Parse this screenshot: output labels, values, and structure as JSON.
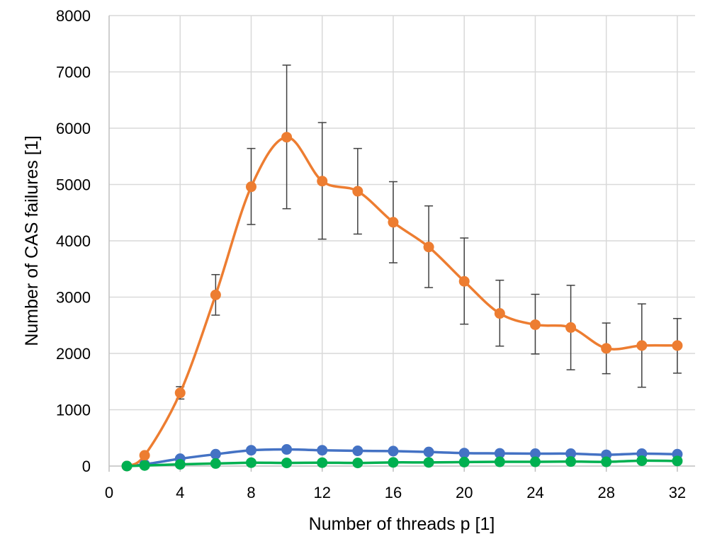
{
  "chart_data": {
    "type": "line",
    "xlabel": "Number of threads p [1]",
    "ylabel": "Number of CAS failures [1]",
    "xlim": [
      0,
      33
    ],
    "ylim": [
      0,
      8000
    ],
    "xticks": [
      0,
      4,
      8,
      12,
      16,
      20,
      24,
      28,
      32
    ],
    "yticks": [
      0,
      1000,
      2000,
      3000,
      4000,
      5000,
      6000,
      7000,
      8000
    ],
    "grid": true,
    "legend": "none",
    "smooth": true,
    "series": [
      {
        "color": "#4472C4",
        "x": [
          1,
          2,
          4,
          6,
          8,
          10,
          12,
          14,
          16,
          18,
          20,
          22,
          24,
          26,
          28,
          30,
          32
        ],
        "y": [
          0,
          30,
          130,
          210,
          280,
          295,
          280,
          270,
          265,
          250,
          230,
          225,
          220,
          220,
          200,
          220,
          210
        ]
      },
      {
        "color": "#ED7D31",
        "x": [
          1,
          2,
          4,
          6,
          8,
          10,
          12,
          14,
          16,
          18,
          20,
          22,
          24,
          26,
          28,
          30,
          32
        ],
        "y": [
          0,
          190,
          1300,
          3040,
          4960,
          5840,
          5060,
          4880,
          4330,
          3890,
          3280,
          2710,
          2510,
          2460,
          2090,
          2140,
          2140
        ],
        "error_high": [
          null,
          null,
          1410,
          3400,
          5640,
          7120,
          6100,
          5640,
          5050,
          4620,
          4050,
          3300,
          3050,
          3210,
          2540,
          2880,
          2620
        ],
        "error_low": [
          null,
          null,
          1190,
          2680,
          4290,
          4570,
          4030,
          4120,
          3610,
          3170,
          2520,
          2130,
          1990,
          1710,
          1640,
          1400,
          1650
        ]
      },
      {
        "color": "#00B050",
        "x": [
          1,
          2,
          4,
          6,
          8,
          10,
          12,
          14,
          16,
          18,
          20,
          22,
          24,
          26,
          28,
          30,
          32
        ],
        "y": [
          0,
          10,
          30,
          45,
          60,
          55,
          60,
          55,
          65,
          65,
          70,
          75,
          75,
          80,
          75,
          95,
          90
        ]
      }
    ]
  }
}
